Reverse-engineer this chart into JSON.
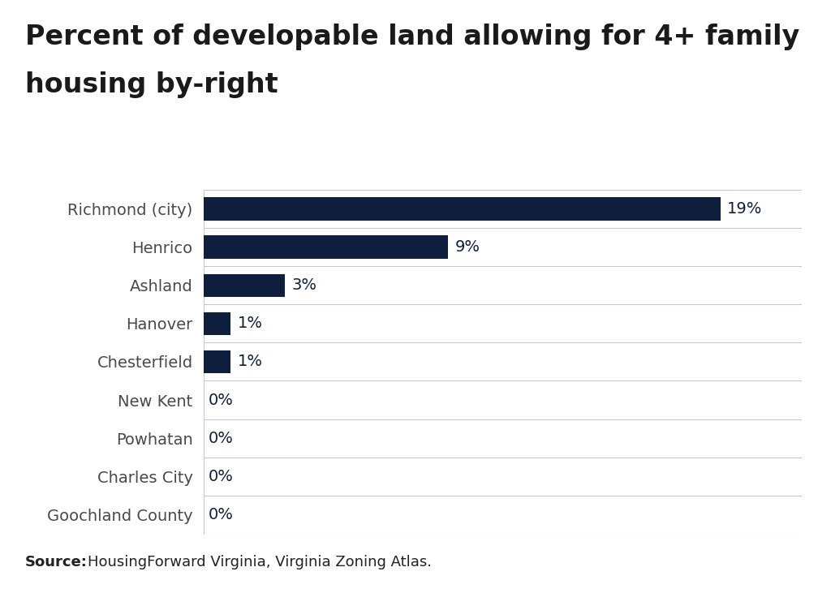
{
  "title_line1": "Percent of developable land allowing for 4+ family",
  "title_line2": "housing by-right",
  "categories": [
    "Goochland County",
    "Charles City",
    "Powhatan",
    "New Kent",
    "Chesterfield",
    "Hanover",
    "Ashland",
    "Henrico",
    "Richmond (city)"
  ],
  "values": [
    0,
    0,
    0,
    0,
    1,
    1,
    3,
    9,
    19
  ],
  "labels": [
    "0%",
    "0%",
    "0%",
    "0%",
    "1%",
    "1%",
    "3%",
    "9%",
    "19%"
  ],
  "bar_color": "#0d1f3c",
  "background_color": "#ffffff",
  "title_fontsize": 24,
  "label_fontsize": 14,
  "tick_fontsize": 14,
  "source_text": "HousingForward Virginia, Virginia Zoning Atlas.",
  "source_bold": "Source:",
  "source_fontsize": 13,
  "xlim": [
    0,
    22
  ],
  "grid_color": "#c8c8c8",
  "title_color": "#1a1a1a",
  "label_color": "#0d1f3c",
  "yticklabel_color": "#4a4a4a"
}
